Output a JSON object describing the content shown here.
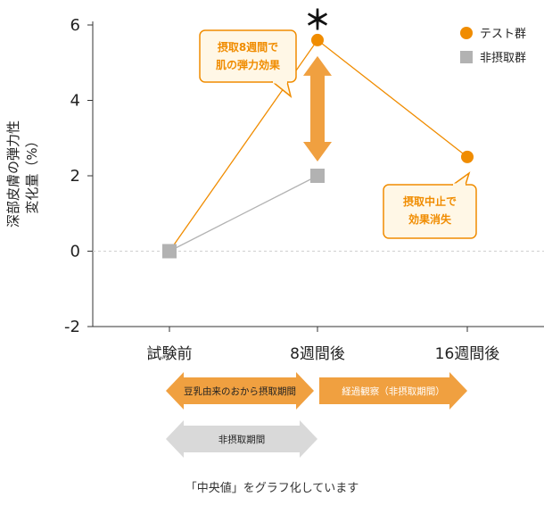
{
  "chart_data": {
    "type": "line",
    "ylabel_lines": [
      "深部皮膚の弾力性",
      "変化量（%）"
    ],
    "categories": [
      "試験前",
      "8週間後",
      "16週間後"
    ],
    "ylim": [
      -2,
      6
    ],
    "yticks": [
      -2,
      0,
      2,
      4,
      6
    ],
    "zero_line": "dashed",
    "series": [
      {
        "name": "テスト群",
        "color": "#F08C00",
        "marker": "circle",
        "values": [
          0,
          5.6,
          2.5
        ]
      },
      {
        "name": "非摂取群",
        "color": "#B2B2B2",
        "marker": "square",
        "values": [
          0,
          2.0,
          null
        ]
      }
    ],
    "legend_position": "top-right",
    "significance_mark": "＊",
    "callouts": [
      {
        "lines": [
          "摂取8週間で",
          "肌の弾力効果"
        ]
      },
      {
        "lines": [
          "摂取中止で",
          "効果消失"
        ]
      }
    ],
    "period_arrows": [
      {
        "label": "豆乳由来のおから摂取期間",
        "color": "#F0A040"
      },
      {
        "label": "経過観察（非摂取期間）",
        "color": "#F0A040"
      },
      {
        "label": "非摂取期間",
        "color": "#D9D9D9"
      }
    ],
    "footnote": "「中央値」をグラフ化しています"
  },
  "colors": {
    "accent": "#F08C00",
    "arrow_orange": "#F0A040",
    "gray_marker": "#B2B2B2",
    "gray_arrow": "#D9D9D9",
    "callout_fill": "#FFF7E6"
  }
}
